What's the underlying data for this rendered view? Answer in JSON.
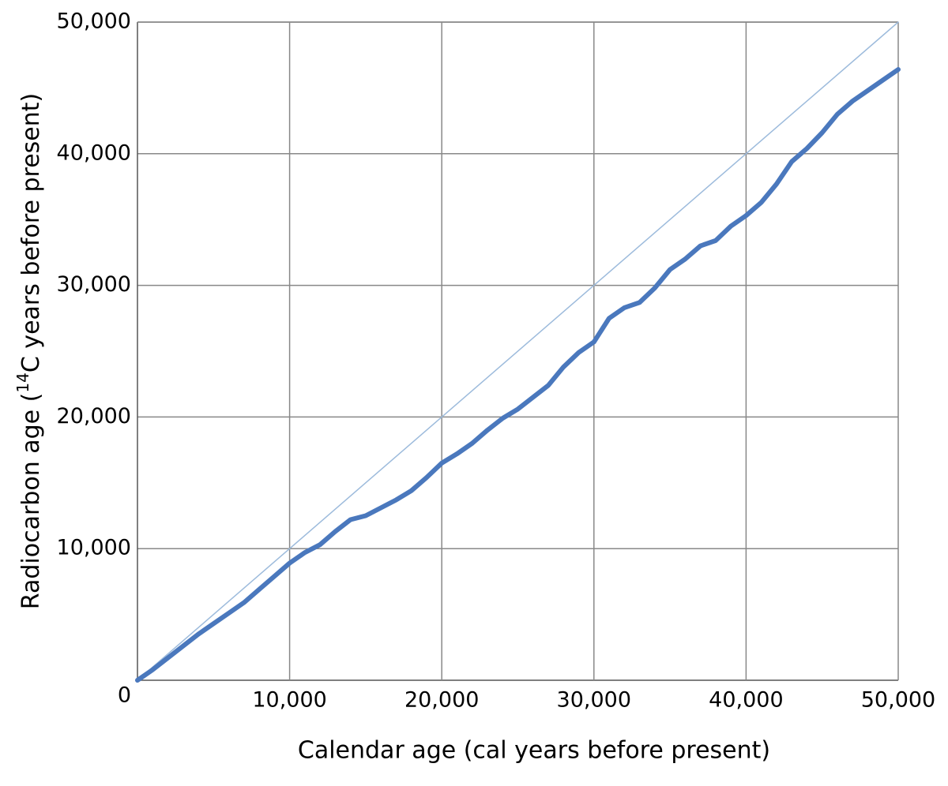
{
  "chart_data": {
    "type": "line",
    "xlabel": "Calendar age (cal years before present)",
    "ylabel": [
      "Radiocarbon age (",
      "14",
      "C years before present)"
    ],
    "xlim": [
      0,
      50000
    ],
    "ylim": [
      0,
      50000
    ],
    "xticks": [
      {
        "value": 10000,
        "label": "10,000"
      },
      {
        "value": 20000,
        "label": "20,000"
      },
      {
        "value": 30000,
        "label": "30,000"
      },
      {
        "value": 40000,
        "label": "40,000"
      },
      {
        "value": 50000,
        "label": "50,000"
      }
    ],
    "yticks": [
      0,
      {
        "value": 10000,
        "label": "10,000"
      },
      {
        "value": 20000,
        "label": "20,000"
      },
      {
        "value": 30000,
        "label": "30,000"
      },
      {
        "value": 40000,
        "label": "40,000"
      },
      {
        "value": 50000,
        "label": "50,000"
      }
    ],
    "grid": true,
    "series": [
      {
        "color": "#9dbbdc",
        "width": 1.5,
        "x": [
          0,
          50000
        ],
        "values": [
          0,
          50000
        ]
      },
      {
        "color": "#4a78bd",
        "width": 6,
        "x": [
          0,
          1000,
          2000,
          3000,
          4000,
          5000,
          6000,
          7000,
          8000,
          9000,
          10000,
          11000,
          12000,
          13000,
          14000,
          15000,
          16000,
          17000,
          18000,
          19000,
          20000,
          21000,
          22000,
          23000,
          24000,
          25000,
          26000,
          27000,
          28000,
          29000,
          30000,
          31000,
          32000,
          33000,
          34000,
          35000,
          36000,
          37000,
          38000,
          39000,
          40000,
          41000,
          42000,
          43000,
          44000,
          45000,
          46000,
          47000,
          48000,
          49000,
          50000
        ],
        "values": [
          0,
          800,
          1700,
          2600,
          3500,
          4300,
          5100,
          5900,
          6900,
          7900,
          8900,
          9700,
          10300,
          11300,
          12200,
          12500,
          13100,
          13700,
          14400,
          15400,
          16500,
          17200,
          18000,
          19000,
          19900,
          20600,
          21500,
          22400,
          23800,
          24900,
          25700,
          27500,
          28300,
          28700,
          29800,
          31200,
          32000,
          33000,
          33400,
          34500,
          35300,
          36300,
          37700,
          39400,
          40400,
          41600,
          43000,
          44000,
          44800,
          45600,
          46400
        ]
      }
    ]
  }
}
